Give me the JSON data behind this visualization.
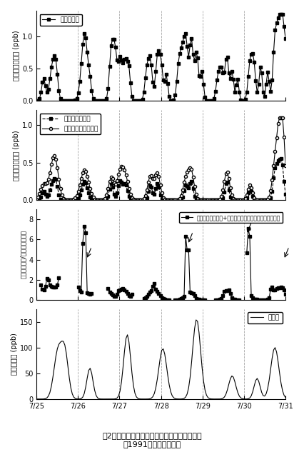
{
  "title": "図2　イソプレンとその反応生成物の濃度変動\n（1991年夏，つくば）",
  "panel1_ylabel": "イソプレン濃度 (ppb)",
  "panel1_ylim": [
    0,
    1.4
  ],
  "panel1_yticks": [
    0,
    0.5,
    1.0
  ],
  "panel1_legend": "イソプレン",
  "panel2_ylabel": "反応生成物濃度 (ppb)",
  "panel2_ylim": [
    0,
    1.2
  ],
  "panel2_yticks": [
    0,
    0.5,
    1.0
  ],
  "panel2_legend1": "メタクロレイン",
  "panel2_legend2": "メチルビニルケトン",
  "panel3_ylabel": "（反応生成物/イソプレン）比",
  "panel3_ylim": [
    0,
    9
  ],
  "panel3_yticks": [
    0,
    2,
    4,
    6,
    8
  ],
  "panel3_legend": "（メタクロレイン+メチルビニルケトン）／イソプレン",
  "panel4_ylabel": "オゾン濃度 (ppb)",
  "panel4_ylim": [
    0,
    175
  ],
  "panel4_yticks": [
    0,
    50,
    100,
    150
  ],
  "panel4_legend": "オゾン",
  "xlabel_ticks": [
    "7/25",
    "7/26",
    "7/27",
    "7/28",
    "7/29",
    "7/30",
    "7/31"
  ],
  "n_points": 168,
  "bg_color": "#ffffff",
  "line_color": "#000000"
}
